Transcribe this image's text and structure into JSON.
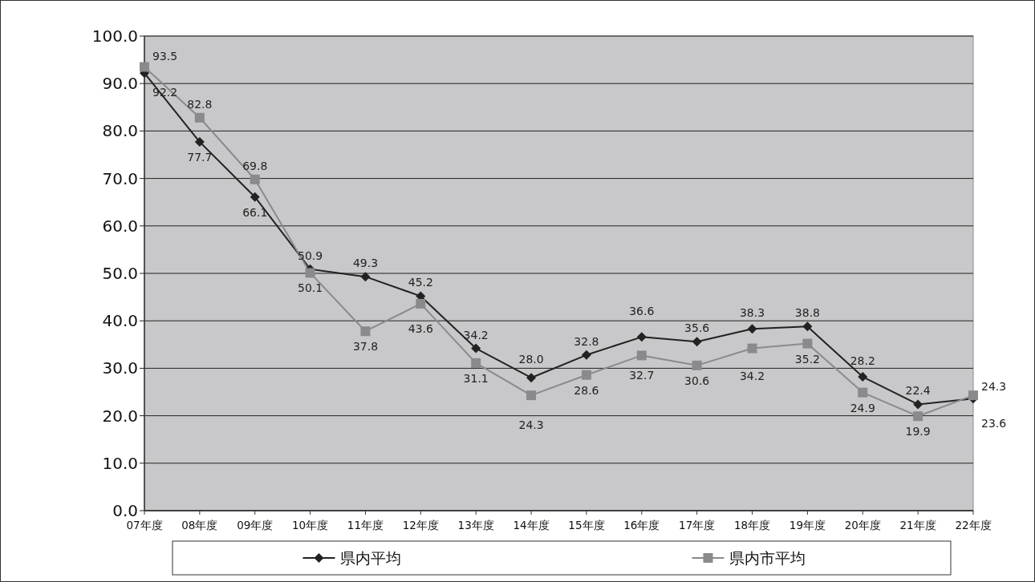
{
  "chart_data": {
    "type": "line",
    "categories": [
      "07年度",
      "08年度",
      "09年度",
      "10年度",
      "11年度",
      "12年度",
      "13年度",
      "14年度",
      "15年度",
      "16年度",
      "17年度",
      "18年度",
      "19年度",
      "20年度",
      "21年度",
      "22年度"
    ],
    "series": [
      {
        "name": "県内平均",
        "color": "#222222",
        "marker": "diamond",
        "values": [
          92.2,
          77.7,
          66.1,
          50.9,
          49.3,
          45.2,
          34.2,
          28.0,
          32.8,
          36.6,
          35.6,
          38.3,
          38.8,
          28.2,
          22.4,
          23.6
        ],
        "value_labels": [
          "92.2",
          "77.7",
          "66.1",
          "50.9",
          "49.3",
          "45.2",
          "34.2",
          "28.0",
          "32.8",
          "36.6",
          "35.6",
          "38.3",
          "38.8",
          "28.2",
          "22.4",
          "23.6"
        ]
      },
      {
        "name": "県内市平均",
        "color": "#8a8a8c",
        "marker": "square",
        "values": [
          93.5,
          82.8,
          69.8,
          50.1,
          37.8,
          43.6,
          31.1,
          24.3,
          28.6,
          32.7,
          30.6,
          34.2,
          35.2,
          24.9,
          19.9,
          24.3
        ],
        "value_labels": [
          "93.5",
          "82.8",
          "69.8",
          "50.1",
          "37.8",
          "43.6",
          "31.1",
          "24.3",
          "28.6",
          "32.7",
          "30.6",
          "34.2",
          "35.2",
          "24.9",
          "19.9",
          "24.3"
        ]
      }
    ],
    "ylim": [
      0,
      100
    ],
    "yticks": [
      {
        "value": 0,
        "label": "0.0"
      },
      {
        "value": 10,
        "label": "10.0"
      },
      {
        "value": 20,
        "label": "20.0"
      },
      {
        "value": 30,
        "label": "30.0"
      },
      {
        "value": 40,
        "label": "40.0"
      },
      {
        "value": 50,
        "label": "50.0"
      },
      {
        "value": 60,
        "label": "60.0"
      },
      {
        "value": 70,
        "label": "70.0"
      },
      {
        "value": 80,
        "label": "80.0"
      },
      {
        "value": 90,
        "label": "90.0"
      },
      {
        "value": 100,
        "label": "100.0"
      }
    ],
    "grid": "y",
    "legend": "bottom"
  }
}
